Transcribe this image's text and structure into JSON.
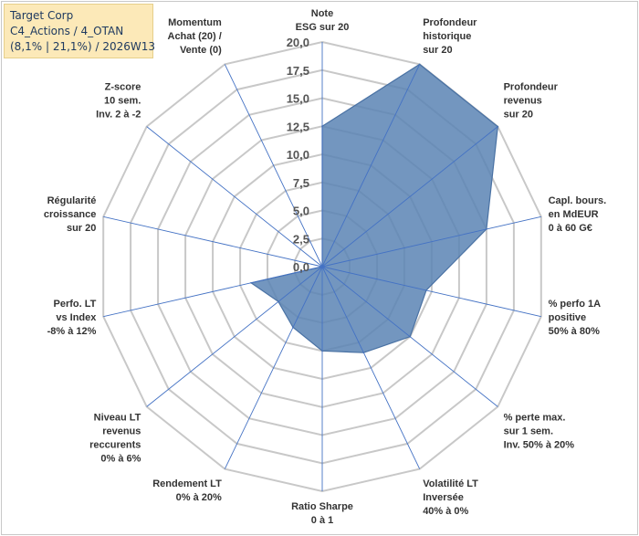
{
  "legend": {
    "line1": "Target Corp",
    "line2": "C4_Actions / 4_OTAN",
    "line3": "(8,1% | 21,1%) / 2026W13"
  },
  "chart_data": {
    "type": "radar",
    "title": "",
    "rmin": 0,
    "rmax": 20,
    "ticks": [
      "0,0",
      "2,5",
      "5,0",
      "7,5",
      "10,0",
      "12,5",
      "15,0",
      "17,5",
      "20,0"
    ],
    "tick_values": [
      0,
      2.5,
      5,
      7.5,
      10,
      12.5,
      15,
      17.5,
      20
    ],
    "axes": [
      [
        "Note",
        "ESG sur 20"
      ],
      [
        "Profondeur",
        "historique",
        "sur 20"
      ],
      [
        "Profondeur",
        "revenus",
        "sur 20"
      ],
      [
        "Capl. bours.",
        "en MdEUR",
        "0 à 60 G€"
      ],
      [
        "% perfo 1A",
        "positive",
        "50% à 80%"
      ],
      [
        "% perte max.",
        "sur 1 sem.",
        "Inv. 50% à 20%"
      ],
      [
        "Volatilité LT",
        "Inversée",
        "40% à 0%"
      ],
      [
        "Ratio Sharpe",
        "0 à 1"
      ],
      [
        "Rendement LT",
        "0% à 20%"
      ],
      [
        "Niveau LT",
        "revenus",
        "reccurents",
        "0% à 6%"
      ],
      [
        "Perfo. LT",
        "vs Index",
        "-8% à 12%"
      ],
      [
        "Régularité",
        "croissance",
        "sur 20"
      ],
      [
        "Z-score",
        "10 sem.",
        "Inv. 2 à -2"
      ],
      [
        "Momentum",
        "Achat (20) /",
        "Vente (0)"
      ]
    ],
    "series": [
      {
        "name": "Target Corp",
        "values": [
          12.5,
          20,
          20,
          15,
          9.5,
          10,
          8.5,
          7.5,
          6,
          5,
          6.5,
          0,
          0,
          0
        ]
      }
    ],
    "colors": {
      "fill": "#5b84b4",
      "fill_opacity": "0.85",
      "stroke": "#4a72a4",
      "spoke": "#4472c4",
      "grid": "#c8c8c8"
    }
  }
}
